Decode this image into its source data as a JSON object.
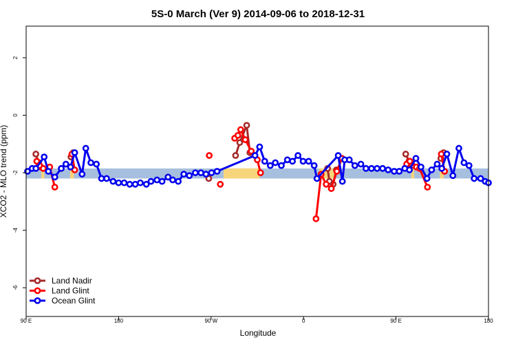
{
  "chart_data": {
    "type": "line",
    "title": "5S-0 March (Ver 9)   2014-09-06 to 2018-12-31",
    "xlabel": "Longitude",
    "ylabel": "XCO2 - MLO trend (ppm)",
    "xlim": [
      0,
      100
    ],
    "ylim": [
      -7,
      3.1
    ],
    "x_ticks": [
      {
        "value": 0,
        "label": "90 E"
      },
      {
        "value": 20,
        "label": "180"
      },
      {
        "value": 40,
        "label": "90 W"
      },
      {
        "value": 60,
        "label": "0"
      },
      {
        "value": 80,
        "label": "90 E"
      },
      {
        "value": 100,
        "label": "180"
      }
    ],
    "y_ticks": [
      {
        "value": 2,
        "label": "2"
      },
      {
        "value": 0,
        "label": "0"
      },
      {
        "value": -2,
        "label": "-2"
      },
      {
        "value": -4,
        "label": "-4"
      },
      {
        "value": -6,
        "label": "-6"
      }
    ],
    "background_band": {
      "y_range": [
        -2.2,
        -1.85
      ],
      "ocean_color": "#a7bfde",
      "land_color": "#f7d57a",
      "land_segments": [
        [
          3.3,
          3.9
        ],
        [
          9.5,
          10.3
        ],
        [
          42.7,
          50.5
        ],
        [
          63.3,
          66.7
        ],
        [
          83.3,
          83.9
        ],
        [
          89.5,
          90.3
        ]
      ]
    },
    "legend_position": "bottom-left",
    "series": [
      {
        "name": "Land Nadir",
        "color": "#a52a2a",
        "segments": [
          [
            [
              2.1,
              -1.35
            ],
            [
              2.7,
              -1.65
            ],
            [
              3.2,
              -1.8
            ]
          ],
          [
            [
              9.7,
              -1.45
            ],
            [
              10.2,
              -1.3
            ]
          ],
          [
            [
              39.5,
              -2.2
            ]
          ],
          [
            [
              45.3,
              -1.4
            ],
            [
              46.2,
              -0.95
            ],
            [
              47.7,
              -0.35
            ],
            [
              48.4,
              -1.3
            ]
          ],
          [
            [
              65.2,
              -1.85
            ],
            [
              65.6,
              -2.3
            ],
            [
              66.4,
              -2.4
            ],
            [
              67.1,
              -1.9
            ]
          ],
          [
            [
              82.1,
              -1.35
            ],
            [
              82.8,
              -1.6
            ],
            [
              83.5,
              -1.75
            ]
          ],
          [
            [
              89.7,
              -1.5
            ],
            [
              90.3,
              -1.3
            ]
          ]
        ]
      },
      {
        "name": "Land Glint",
        "color": "#ff0000",
        "segments": [
          [
            [
              2.3,
              -1.6
            ],
            [
              2.9,
              -1.75
            ],
            [
              3.7,
              -1.85
            ],
            [
              5.1,
              -1.8
            ],
            [
              6.2,
              -2.5
            ]
          ],
          [
            [
              9.9,
              -1.35
            ],
            [
              10.5,
              -1.9
            ]
          ],
          [
            [
              39.6,
              -1.4
            ]
          ],
          [
            [
              42.0,
              -2.4
            ]
          ],
          [
            [
              45.1,
              -0.8
            ],
            [
              45.8,
              -0.7
            ],
            [
              46.4,
              -0.5
            ],
            [
              47.4,
              -0.85
            ],
            [
              48.7,
              -1.25
            ],
            [
              50.0,
              -1.55
            ],
            [
              50.7,
              -2.0
            ]
          ],
          [
            [
              62.7,
              -3.6
            ],
            [
              63.8,
              -2.05
            ],
            [
              64.9,
              -2.4
            ],
            [
              66.0,
              -2.55
            ],
            [
              67.2,
              -1.95
            ],
            [
              68.3,
              -1.5
            ]
          ],
          [
            [
              82.3,
              -1.7
            ],
            [
              83.0,
              -1.6
            ],
            [
              84.4,
              -1.8
            ],
            [
              85.1,
              -1.85
            ],
            [
              86.8,
              -2.5
            ]
          ],
          [
            [
              89.8,
              -1.35
            ],
            [
              90.5,
              -1.95
            ]
          ]
        ]
      },
      {
        "name": "Ocean Glint",
        "color": "#0000ee",
        "values": [
          [
            0.3,
            -1.95
          ],
          [
            1.3,
            -1.85
          ],
          [
            2.1,
            -1.85
          ],
          [
            3.9,
            -1.45
          ],
          [
            4.8,
            -1.95
          ],
          [
            6.2,
            -2.15
          ],
          [
            7.6,
            -1.85
          ],
          [
            8.6,
            -1.7
          ],
          [
            9.6,
            -1.8
          ],
          [
            10.5,
            -1.3
          ],
          [
            12.1,
            -2.05
          ],
          [
            12.9,
            -1.15
          ],
          [
            14.0,
            -1.65
          ],
          [
            15.2,
            -1.7
          ],
          [
            16.3,
            -2.2
          ],
          [
            17.4,
            -2.2
          ],
          [
            18.8,
            -2.3
          ],
          [
            20.0,
            -2.35
          ],
          [
            21.2,
            -2.35
          ],
          [
            22.4,
            -2.4
          ],
          [
            23.6,
            -2.4
          ],
          [
            24.7,
            -2.35
          ],
          [
            26.0,
            -2.4
          ],
          [
            27.0,
            -2.3
          ],
          [
            28.3,
            -2.25
          ],
          [
            29.4,
            -2.3
          ],
          [
            30.7,
            -2.15
          ],
          [
            31.7,
            -2.25
          ],
          [
            32.9,
            -2.3
          ],
          [
            34.1,
            -2.05
          ],
          [
            35.3,
            -2.1
          ],
          [
            36.6,
            -2.0
          ],
          [
            37.8,
            -2.0
          ],
          [
            38.9,
            -2.05
          ],
          [
            40.1,
            -2.0
          ],
          [
            41.3,
            -1.95
          ],
          [
            49.5,
            -1.4
          ],
          [
            50.5,
            -1.1
          ],
          [
            51.6,
            -1.6
          ],
          [
            52.8,
            -1.75
          ],
          [
            53.9,
            -1.65
          ],
          [
            55.2,
            -1.75
          ],
          [
            56.5,
            -1.55
          ],
          [
            57.6,
            -1.6
          ],
          [
            58.8,
            -1.4
          ],
          [
            59.9,
            -1.6
          ],
          [
            61.1,
            -1.6
          ],
          [
            62.3,
            -1.75
          ],
          [
            62.9,
            -2.2
          ],
          [
            67.5,
            -1.4
          ],
          [
            68.4,
            -2.3
          ],
          [
            68.9,
            -1.55
          ],
          [
            69.9,
            -1.55
          ],
          [
            71.1,
            -1.75
          ],
          [
            72.4,
            -1.7
          ],
          [
            73.5,
            -1.85
          ],
          [
            74.7,
            -1.85
          ],
          [
            75.9,
            -1.85
          ],
          [
            77.1,
            -1.85
          ],
          [
            78.3,
            -1.9
          ],
          [
            79.6,
            -1.95
          ],
          [
            80.7,
            -1.95
          ],
          [
            81.9,
            -1.85
          ],
          [
            82.9,
            -1.9
          ],
          [
            84.3,
            -1.5
          ],
          [
            85.4,
            -1.8
          ],
          [
            86.7,
            -2.2
          ],
          [
            87.7,
            -1.9
          ],
          [
            88.9,
            -1.7
          ],
          [
            89.9,
            -1.85
          ],
          [
            91.0,
            -1.35
          ],
          [
            92.3,
            -2.1
          ],
          [
            93.6,
            -1.15
          ],
          [
            94.7,
            -1.65
          ],
          [
            95.8,
            -1.75
          ],
          [
            96.9,
            -2.2
          ],
          [
            98.3,
            -2.2
          ],
          [
            99.3,
            -2.3
          ],
          [
            100.0,
            -2.35
          ]
        ]
      }
    ]
  }
}
